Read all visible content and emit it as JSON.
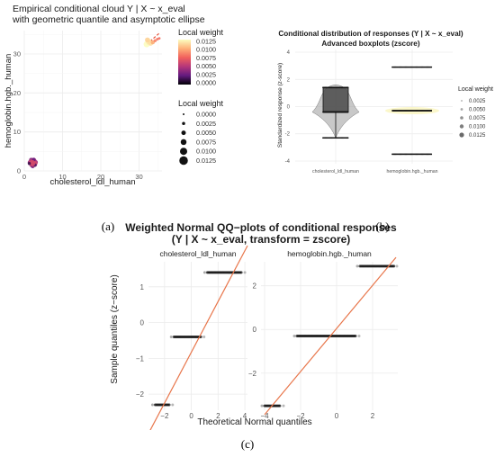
{
  "captions": {
    "a": "(a)",
    "b": "(b)",
    "c": "(c)"
  },
  "chart_data": [
    {
      "id": "a",
      "type": "scatter",
      "title": "Empirical conditional cloud Y | X ~ x_eval",
      "subtitle": "with geometric quantile and asymptotic ellipse",
      "xlabel": "cholesterol_ldl_human",
      "ylabel": "hemoglobin.hgb._human",
      "xlim": [
        0,
        36
      ],
      "ylim": [
        0,
        36
      ],
      "xticks": [
        "0",
        "10",
        "20",
        "30"
      ],
      "xtick_values": [
        0,
        10,
        20,
        30
      ],
      "yticks": [
        "0",
        "10",
        "20",
        "30"
      ],
      "ytick_values": [
        0,
        10,
        20,
        30
      ],
      "grid": true,
      "legend_color": {
        "title": "Local weight",
        "labels": [
          "0.0125",
          "0.0100",
          "0.0075",
          "0.0050",
          "0.0025",
          "0.0000"
        ]
      },
      "legend_size": {
        "title": "Local weight",
        "labels": [
          "0.0000",
          "0.0025",
          "0.0050",
          "0.0075",
          "0.0100",
          "0.0125"
        ]
      },
      "points": [
        {
          "x": 1.5,
          "y": 2.2,
          "w": 0.008
        },
        {
          "x": 2.0,
          "y": 1.6,
          "w": 0.01
        },
        {
          "x": 2.4,
          "y": 2.6,
          "w": 0.012
        },
        {
          "x": 2.9,
          "y": 2.2,
          "w": 0.009
        },
        {
          "x": 1.8,
          "y": 2.8,
          "w": 0.007
        },
        {
          "x": 2.2,
          "y": 1.2,
          "w": 0.006
        },
        {
          "x": 2.6,
          "y": 1.8,
          "w": 0.0125
        },
        {
          "x": 1.9,
          "y": 2.3,
          "w": 0.011
        },
        {
          "x": 2.5,
          "y": 2.9,
          "w": 0.005
        },
        {
          "x": 2.8,
          "y": 1.5,
          "w": 0.004
        },
        {
          "x": 2.1,
          "y": 2.0,
          "w": 0.0125
        },
        {
          "x": 1.3,
          "y": 1.9,
          "w": 0.003
        },
        {
          "x": 32.0,
          "y": 32.5,
          "w": 0.0125
        },
        {
          "x": 32.5,
          "y": 33.2,
          "w": 0.011
        },
        {
          "x": 33.0,
          "y": 32.8,
          "w": 0.01
        },
        {
          "x": 32.2,
          "y": 33.6,
          "w": 0.009
        },
        {
          "x": 33.6,
          "y": 33.0,
          "w": 0.006
        },
        {
          "x": 34.2,
          "y": 33.4,
          "w": 0.003
        },
        {
          "x": 34.8,
          "y": 33.8,
          "w": 0.002
        },
        {
          "x": 35.3,
          "y": 34.0,
          "w": 0.001
        }
      ],
      "quantile_line": {
        "x1": 32,
        "y1": 32.5,
        "x2": 35.5,
        "y2": 35.5
      }
    },
    {
      "id": "b",
      "type": "boxplot",
      "title": "Conditional distribution of responses (Y | X ~ x_eval)",
      "subtitle": "Advanced boxplots (zscore)",
      "xlabel": "",
      "ylabel": "Standardized response (z-score)",
      "categories": [
        "cholesterol_ldl_human",
        "hemoglobin.hgb._human"
      ],
      "ylim": [
        -4.2,
        4.2
      ],
      "yticks": [
        "4",
        "2",
        "0",
        "-2",
        "-4"
      ],
      "ytick_values": [
        4,
        2,
        0,
        -2,
        -4
      ],
      "grid": true,
      "legend": {
        "title": "Local weight",
        "labels": [
          "0.0025",
          "0.0050",
          "0.0075",
          "0.0100",
          "0.0125"
        ]
      },
      "boxes": [
        {
          "category": "cholesterol_ldl_human",
          "q1": -0.4,
          "median": -0.4,
          "q3": 1.4,
          "whisker_low": -2.3,
          "whisker_high": 1.4,
          "clusters": [
            1.4,
            -0.4,
            -2.3
          ]
        },
        {
          "category": "hemoglobin.hgb._human",
          "q1": -0.3,
          "median": -0.3,
          "q3": -0.3,
          "whisker_low": -0.3,
          "whisker_high": -0.3,
          "clusters": [
            2.9,
            -0.3,
            -3.5
          ]
        }
      ]
    },
    {
      "id": "c",
      "type": "scatter",
      "title": "Weighted Normal QQ−plots of conditional responses",
      "subtitle": "(Y | X ~ x_eval, transform = zscore)",
      "xlabel": "Theoretical Normal quantiles",
      "ylabel": "Sample quantiles (z−score)",
      "facets": [
        {
          "name": "cholesterol_ldl_human",
          "xlim": [
            -3.2,
            4.2
          ],
          "ylim": [
            -2.45,
            1.7
          ],
          "xticks": [
            "−2",
            "0",
            "2",
            "4"
          ],
          "xtick_values": [
            -2,
            0,
            2,
            4
          ],
          "yticks": [
            "1",
            "0",
            "−1",
            "−2"
          ],
          "ytick_values": [
            1,
            0,
            -1,
            -2
          ],
          "steps": [
            {
              "y": -2.3,
              "x_from": -2.7,
              "x_to": -1.6
            },
            {
              "y": -0.4,
              "x_from": -1.3,
              "x_to": 0.75
            },
            {
              "y": 1.4,
              "x_from": 1.2,
              "x_to": 3.8
            }
          ],
          "fit_line": {
            "x1": -3.2,
            "y1": -3.1,
            "x2": 4.2,
            "y2": 2.15
          }
        },
        {
          "name": "hemoglobin.hgb._human",
          "xlim": [
            -4.2,
            3.4
          ],
          "ylim": [
            -3.7,
            3.1
          ],
          "xticks": [
            "−4",
            "−2",
            "0",
            "2"
          ],
          "xtick_values": [
            -4,
            -2,
            0,
            2
          ],
          "yticks": [
            "2",
            "0",
            "−2"
          ],
          "ytick_values": [
            2,
            0,
            -2
          ],
          "steps": [
            {
              "y": -3.5,
              "x_from": -4.0,
              "x_to": -3.1
            },
            {
              "y": -0.3,
              "x_from": -2.2,
              "x_to": 1.1
            },
            {
              "y": 2.9,
              "x_from": 1.3,
              "x_to": 3.2
            }
          ],
          "fit_line": {
            "x1": -4.0,
            "y1": -3.9,
            "x2": 3.3,
            "y2": 3.3
          }
        }
      ]
    }
  ]
}
